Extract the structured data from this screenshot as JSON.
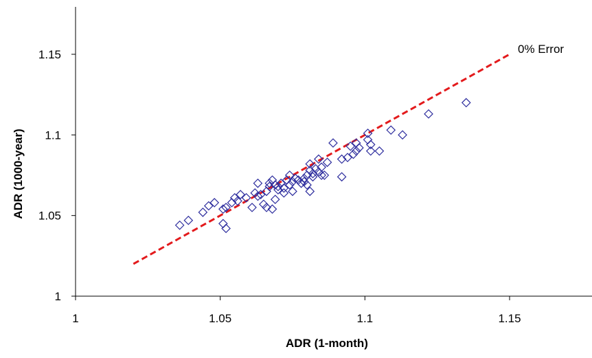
{
  "chart_data": {
    "type": "scatter",
    "title": "",
    "xlabel": "ADR (1-month)",
    "ylabel": "ADR (1000-year)",
    "xlim": [
      1,
      1.175
    ],
    "ylim": [
      1,
      1.18
    ],
    "xticks": [
      "1",
      "1.05",
      "1.1",
      "1.15"
    ],
    "yticks": [
      "1",
      "1.05",
      "1.1",
      "1.15"
    ],
    "grid": false,
    "annotation": "0% Error",
    "reference_line": {
      "x": [
        1.02,
        1.15
      ],
      "y": [
        1.02,
        1.15
      ],
      "color": "#e31a1c",
      "style": "dashed"
    },
    "marker_color": "#2e2e9e",
    "marker": "diamond",
    "points": [
      [
        1.036,
        1.044
      ],
      [
        1.039,
        1.047
      ],
      [
        1.044,
        1.052
      ],
      [
        1.046,
        1.056
      ],
      [
        1.048,
        1.058
      ],
      [
        1.051,
        1.045
      ],
      [
        1.052,
        1.042
      ],
      [
        1.051,
        1.054
      ],
      [
        1.052,
        1.055
      ],
      [
        1.054,
        1.058
      ],
      [
        1.055,
        1.061
      ],
      [
        1.056,
        1.059
      ],
      [
        1.057,
        1.063
      ],
      [
        1.059,
        1.061
      ],
      [
        1.061,
        1.055
      ],
      [
        1.062,
        1.064
      ],
      [
        1.063,
        1.062
      ],
      [
        1.063,
        1.07
      ],
      [
        1.064,
        1.063
      ],
      [
        1.065,
        1.057
      ],
      [
        1.066,
        1.055
      ],
      [
        1.066,
        1.065
      ],
      [
        1.067,
        1.068
      ],
      [
        1.067,
        1.07
      ],
      [
        1.068,
        1.054
      ],
      [
        1.068,
        1.072
      ],
      [
        1.069,
        1.069
      ],
      [
        1.069,
        1.06
      ],
      [
        1.07,
        1.066
      ],
      [
        1.07,
        1.068
      ],
      [
        1.071,
        1.07
      ],
      [
        1.072,
        1.064
      ],
      [
        1.072,
        1.067
      ],
      [
        1.073,
        1.072
      ],
      [
        1.074,
        1.069
      ],
      [
        1.074,
        1.075
      ],
      [
        1.075,
        1.071
      ],
      [
        1.075,
        1.065
      ],
      [
        1.076,
        1.073
      ],
      [
        1.077,
        1.072
      ],
      [
        1.078,
        1.07
      ],
      [
        1.079,
        1.071
      ],
      [
        1.079,
        1.073
      ],
      [
        1.08,
        1.075
      ],
      [
        1.08,
        1.069
      ],
      [
        1.081,
        1.065
      ],
      [
        1.081,
        1.078
      ],
      [
        1.081,
        1.082
      ],
      [
        1.082,
        1.074
      ],
      [
        1.082,
        1.076
      ],
      [
        1.083,
        1.079
      ],
      [
        1.084,
        1.077
      ],
      [
        1.084,
        1.085
      ],
      [
        1.085,
        1.08
      ],
      [
        1.085,
        1.075
      ],
      [
        1.086,
        1.075
      ],
      [
        1.087,
        1.083
      ],
      [
        1.089,
        1.095
      ],
      [
        1.092,
        1.074
      ],
      [
        1.092,
        1.085
      ],
      [
        1.094,
        1.086
      ],
      [
        1.095,
        1.093
      ],
      [
        1.096,
        1.088
      ],
      [
        1.097,
        1.095
      ],
      [
        1.097,
        1.09
      ],
      [
        1.098,
        1.092
      ],
      [
        1.101,
        1.101
      ],
      [
        1.101,
        1.097
      ],
      [
        1.102,
        1.094
      ],
      [
        1.102,
        1.09
      ],
      [
        1.105,
        1.09
      ],
      [
        1.109,
        1.103
      ],
      [
        1.113,
        1.1
      ],
      [
        1.122,
        1.113
      ],
      [
        1.135,
        1.12
      ]
    ]
  }
}
